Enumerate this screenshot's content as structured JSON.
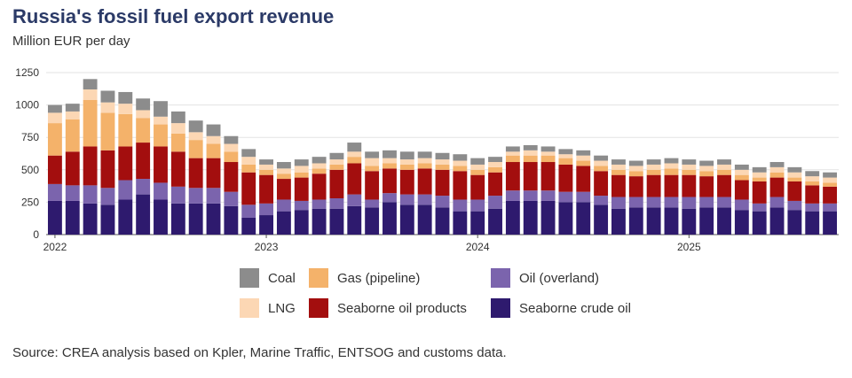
{
  "title": "Russia's fossil fuel export revenue",
  "subtitle": "Million EUR per day",
  "source": "Source: CREA analysis based on Kpler, Marine Traffic, ENTSOG and customs data.",
  "colors": {
    "Coal": "#8c8c8c",
    "Gas (pipeline)": "#f4b26a",
    "Oil (overland)": "#7b64ad",
    "LNG": "#fcd7b4",
    "Seaborne oil products": "#a30e0e",
    "Seaborne crude oil": "#2e1a6e"
  },
  "legend": [
    "Coal",
    "Gas (pipeline)",
    "Oil (overland)",
    "LNG",
    "Seaborne oil products",
    "Seaborne crude oil"
  ],
  "chart_data": {
    "type": "bar",
    "stacked": true,
    "title": "Russia's fossil fuel export revenue",
    "ylabel": "Million EUR per day",
    "xlabel": "",
    "ylim": [
      0,
      1250
    ],
    "yticks": [
      0,
      250,
      500,
      750,
      1000,
      1250
    ],
    "grid": true,
    "x_tick_labels": [
      {
        "label": "2022",
        "index": 0
      },
      {
        "label": "2023",
        "index": 12
      },
      {
        "label": "2024",
        "index": 24
      },
      {
        "label": "2025",
        "index": 36
      }
    ],
    "categories": [
      "2022-01",
      "2022-02",
      "2022-03",
      "2022-04",
      "2022-05",
      "2022-06",
      "2022-07",
      "2022-08",
      "2022-09",
      "2022-10",
      "2022-11",
      "2022-12",
      "2023-01",
      "2023-02",
      "2023-03",
      "2023-04",
      "2023-05",
      "2023-06",
      "2023-07",
      "2023-08",
      "2023-09",
      "2023-10",
      "2023-11",
      "2023-12",
      "2024-01",
      "2024-02",
      "2024-03",
      "2024-04",
      "2024-05",
      "2024-06",
      "2024-07",
      "2024-08",
      "2024-09",
      "2024-10",
      "2024-11",
      "2024-12",
      "2025-01",
      "2025-02",
      "2025-03",
      "2025-04",
      "2025-05",
      "2025-06",
      "2025-07",
      "2025-08",
      "2025-09"
    ],
    "series": [
      {
        "name": "Seaborne crude oil",
        "values": [
          260,
          260,
          240,
          230,
          270,
          310,
          270,
          240,
          240,
          240,
          220,
          130,
          150,
          180,
          190,
          200,
          200,
          220,
          210,
          250,
          230,
          230,
          210,
          180,
          180,
          200,
          260,
          260,
          260,
          250,
          250,
          230,
          200,
          210,
          210,
          210,
          200,
          210,
          210,
          190,
          180,
          210,
          190,
          180,
          180
        ]
      },
      {
        "name": "Oil (overland)",
        "values": [
          130,
          120,
          140,
          130,
          150,
          120,
          130,
          130,
          120,
          120,
          110,
          100,
          90,
          90,
          70,
          70,
          80,
          90,
          60,
          70,
          80,
          80,
          90,
          90,
          90,
          100,
          80,
          80,
          80,
          80,
          80,
          70,
          90,
          80,
          80,
          80,
          90,
          80,
          80,
          80,
          60,
          80,
          70,
          60,
          60
        ]
      },
      {
        "name": "Seaborne oil products",
        "values": [
          220,
          260,
          300,
          290,
          260,
          280,
          280,
          270,
          230,
          230,
          230,
          250,
          220,
          160,
          180,
          200,
          220,
          240,
          220,
          190,
          190,
          200,
          200,
          220,
          190,
          180,
          220,
          220,
          220,
          210,
          200,
          190,
          170,
          160,
          170,
          170,
          170,
          160,
          170,
          150,
          170,
          150,
          150,
          140,
          130
        ]
      },
      {
        "name": "Gas (pipeline)",
        "values": [
          250,
          250,
          360,
          290,
          250,
          190,
          170,
          140,
          140,
          110,
          80,
          60,
          40,
          40,
          40,
          40,
          40,
          50,
          40,
          40,
          40,
          40,
          40,
          40,
          40,
          40,
          50,
          50,
          50,
          50,
          40,
          40,
          40,
          40,
          40,
          50,
          40,
          40,
          40,
          40,
          30,
          40,
          30,
          30,
          30
        ]
      },
      {
        "name": "LNG",
        "values": [
          80,
          60,
          80,
          80,
          80,
          60,
          60,
          80,
          60,
          60,
          60,
          60,
          40,
          40,
          50,
          40,
          40,
          40,
          60,
          40,
          40,
          40,
          40,
          40,
          40,
          40,
          30,
          40,
          30,
          30,
          40,
          40,
          40,
          40,
          40,
          40,
          40,
          40,
          40,
          40,
          40,
          40,
          40,
          40,
          40
        ]
      },
      {
        "name": "Coal",
        "values": [
          60,
          60,
          80,
          90,
          90,
          90,
          120,
          90,
          90,
          90,
          60,
          60,
          40,
          50,
          50,
          50,
          50,
          70,
          50,
          60,
          60,
          50,
          50,
          50,
          50,
          40,
          40,
          40,
          40,
          40,
          40,
          40,
          40,
          40,
          40,
          40,
          40,
          40,
          40,
          40,
          40,
          40,
          40,
          40,
          40
        ]
      }
    ]
  }
}
